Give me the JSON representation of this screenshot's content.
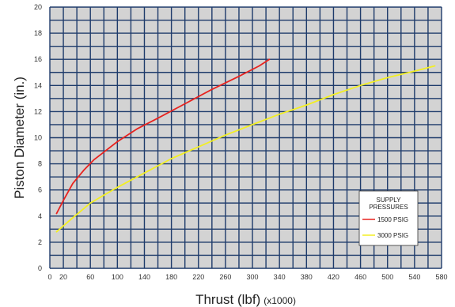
{
  "chart_data": {
    "type": "line",
    "title": "",
    "xlabel": "Thrust (lbf)",
    "xlabel_unit": "(x1000)",
    "ylabel": "Piston Diameter (in.)",
    "xlim": [
      0,
      580
    ],
    "ylim": [
      0,
      20
    ],
    "x_ticks": [
      "0",
      "20",
      "60",
      "100",
      "140",
      "180",
      "220",
      "260",
      "300",
      "340",
      "380",
      "420",
      "460",
      "500",
      "540",
      "580"
    ],
    "y_ticks": [
      "0",
      "2",
      "4",
      "6",
      "8",
      "10",
      "12",
      "14",
      "16",
      "18",
      "20"
    ],
    "grid": true,
    "legend": {
      "title_lines": [
        "SUPPLY",
        "PRESSURES"
      ],
      "placement": "bottom-right"
    },
    "series": [
      {
        "name": "1500 PSIG",
        "color": "#e8231f",
        "points": [
          [
            10,
            4.2
          ],
          [
            20,
            5.2
          ],
          [
            34,
            6.5
          ],
          [
            50,
            7.5
          ],
          [
            65,
            8.3
          ],
          [
            80,
            8.9
          ],
          [
            100,
            9.7
          ],
          [
            130,
            10.7
          ],
          [
            160,
            11.5
          ],
          [
            200,
            12.6
          ],
          [
            240,
            13.7
          ],
          [
            280,
            14.7
          ],
          [
            310,
            15.5
          ],
          [
            325,
            16.0
          ]
        ]
      },
      {
        "name": "3000 PSIG",
        "color": "#f3ef22",
        "points": [
          [
            10,
            2.8
          ],
          [
            30,
            3.7
          ],
          [
            60,
            5.0
          ],
          [
            100,
            6.2
          ],
          [
            140,
            7.3
          ],
          [
            180,
            8.4
          ],
          [
            220,
            9.3
          ],
          [
            260,
            10.2
          ],
          [
            300,
            11.0
          ],
          [
            340,
            11.8
          ],
          [
            380,
            12.5
          ],
          [
            420,
            13.3
          ],
          [
            460,
            14.0
          ],
          [
            500,
            14.6
          ],
          [
            540,
            15.1
          ],
          [
            570,
            15.5
          ]
        ]
      }
    ]
  }
}
